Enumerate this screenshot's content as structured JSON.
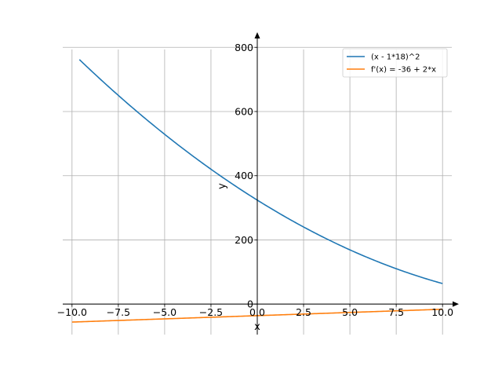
{
  "chart_data": {
    "type": "line",
    "xlabel": "x",
    "ylabel": "y",
    "xlim": [
      -10.5,
      10.5
    ],
    "ylim": [
      -95,
      830
    ],
    "grid": true,
    "legend_position": "top-right",
    "x_ticks": [
      -10.0,
      -7.5,
      -5.0,
      -2.5,
      0.0,
      2.5,
      5.0,
      7.5,
      10.0
    ],
    "x_tick_labels": [
      "−10.0",
      "−7.5",
      "−5.0",
      "−2.5",
      "0.0",
      "2.5",
      "5.0",
      "7.5",
      "10.0"
    ],
    "y_ticks": [
      0,
      200,
      400,
      600,
      800
    ],
    "y_tick_labels": [
      "0",
      "200",
      "400",
      "600",
      "800"
    ],
    "series": [
      {
        "name": "(x - 1*18)^2",
        "color": "#1f77b4",
        "expr": "(x-18)^2",
        "x": [
          -9.6,
          -8.0,
          -6.0,
          -4.0,
          -2.0,
          0.0,
          2.0,
          4.0,
          6.0,
          8.0,
          10.0
        ],
        "y": [
          761.76,
          676.0,
          576.0,
          484.0,
          400.0,
          324.0,
          256.0,
          196.0,
          144.0,
          100.0,
          64.0
        ]
      },
      {
        "name": "f'(x) = -36 + 2*x",
        "color": "#ff7f0e",
        "expr": "-36+2*x",
        "x": [
          -10.0,
          -5.0,
          0.0,
          5.0,
          10.0
        ],
        "y": [
          -56.0,
          -46.0,
          -36.0,
          -26.0,
          -16.0
        ]
      }
    ]
  }
}
